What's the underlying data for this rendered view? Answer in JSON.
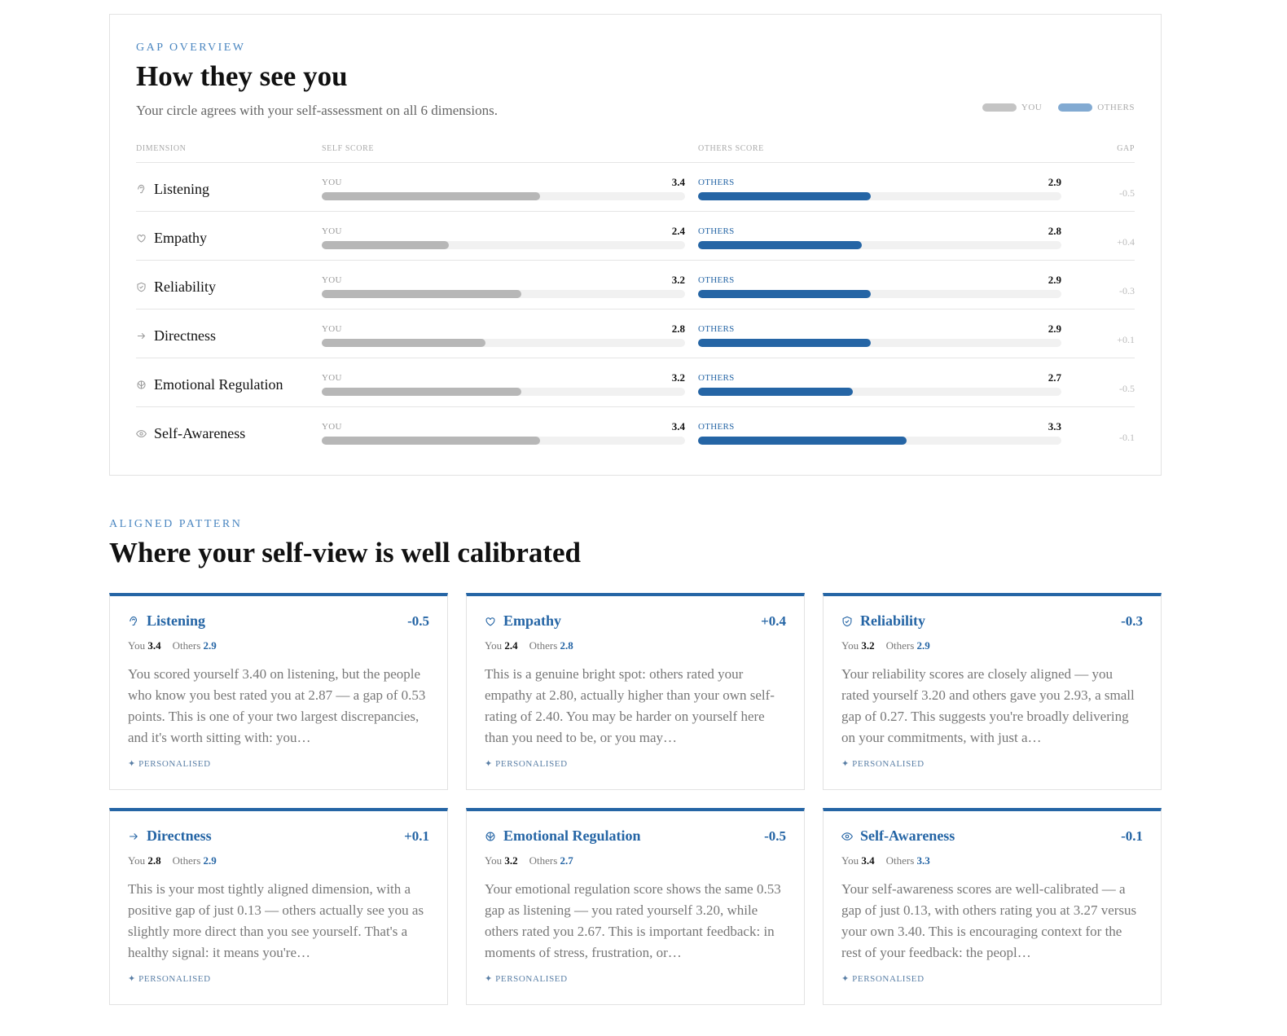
{
  "overview": {
    "eyebrow": "GAP OVERVIEW",
    "title": "How they see you",
    "subtitle": "Your circle agrees with your self-assessment on all 6 dimensions.",
    "legend": {
      "you": "YOU",
      "others": "OTHERS"
    },
    "columns": [
      "DIMENSION",
      "SELF SCORE",
      "OTHERS SCORE",
      "GAP"
    ],
    "xlim": [
      1,
      5
    ],
    "rows": [
      {
        "dimension": "Listening",
        "you_tag": "YOU",
        "self": 3.4,
        "others_tag": "OTHERS",
        "others": 2.9,
        "gap": "-0.5"
      },
      {
        "dimension": "Empathy",
        "you_tag": "YOU",
        "self": 2.4,
        "others_tag": "OTHERS",
        "others": 2.8,
        "gap": "+0.4"
      },
      {
        "dimension": "Reliability",
        "you_tag": "YOU",
        "self": 3.2,
        "others_tag": "OTHERS",
        "others": 2.9,
        "gap": "-0.3"
      },
      {
        "dimension": "Directness",
        "you_tag": "YOU",
        "self": 2.8,
        "others_tag": "OTHERS",
        "others": 2.9,
        "gap": "+0.1"
      },
      {
        "dimension": "Emotional Regulation",
        "you_tag": "YOU",
        "self": 3.2,
        "others_tag": "OTHERS",
        "others": 2.7,
        "gap": "-0.5"
      },
      {
        "dimension": "Self-Awareness",
        "you_tag": "YOU",
        "self": 3.4,
        "others_tag": "OTHERS",
        "others": 3.3,
        "gap": "-0.1"
      }
    ]
  },
  "pattern": {
    "eyebrow": "ALIGNED PATTERN",
    "title": "Where your self-view is well calibrated",
    "cards": [
      {
        "name": "Listening",
        "gap": "-0.5",
        "you_label": "You",
        "you": 3.4,
        "others_label": "Others",
        "others": 2.9,
        "text": "You scored yourself 3.40 on listening, but the people who know you best rated you at 2.87 — a gap of 0.53 points. This is one of your two largest discrepancies, and it's worth sitting with: you…",
        "tag": "✦ PERSONALISED"
      },
      {
        "name": "Empathy",
        "gap": "+0.4",
        "you_label": "You",
        "you": 2.4,
        "others_label": "Others",
        "others": 2.8,
        "text": "This is a genuine bright spot: others rated your empathy at 2.80, actually higher than your own self-rating of 2.40. You may be harder on yourself here than you need to be, or you may…",
        "tag": "✦ PERSONALISED"
      },
      {
        "name": "Reliability",
        "gap": "-0.3",
        "you_label": "You",
        "you": 3.2,
        "others_label": "Others",
        "others": 2.9,
        "text": "Your reliability scores are closely aligned — you rated yourself 3.20 and others gave you 2.93, a small gap of 0.27. This suggests you're broadly delivering on your commitments, with just a…",
        "tag": "✦ PERSONALISED"
      },
      {
        "name": "Directness",
        "gap": "+0.1",
        "you_label": "You",
        "you": 2.8,
        "others_label": "Others",
        "others": 2.9,
        "text": "This is your most tightly aligned dimension, with a positive gap of just 0.13 — others actually see you as slightly more direct than you see yourself. That's a healthy signal: it means you're…",
        "tag": "✦ PERSONALISED"
      },
      {
        "name": "Emotional Regulation",
        "gap": "-0.5",
        "you_label": "You",
        "you": 3.2,
        "others_label": "Others",
        "others": 2.7,
        "text": "Your emotional regulation score shows the same 0.53 gap as listening — you rated yourself 3.20, while others rated you 2.67. This is important feedback: in moments of stress, frustration, or…",
        "tag": "✦ PERSONALISED"
      },
      {
        "name": "Self-Awareness",
        "gap": "-0.1",
        "you_label": "You",
        "you": 3.4,
        "others_label": "Others",
        "others": 3.3,
        "text": "Your self-awareness scores are well-calibrated — a gap of just 0.13, with others rating you at 3.27 versus your own 3.40. This is encouraging context for the rest of your feedback: the peopl…",
        "tag": "✦ PERSONALISED"
      }
    ]
  }
}
